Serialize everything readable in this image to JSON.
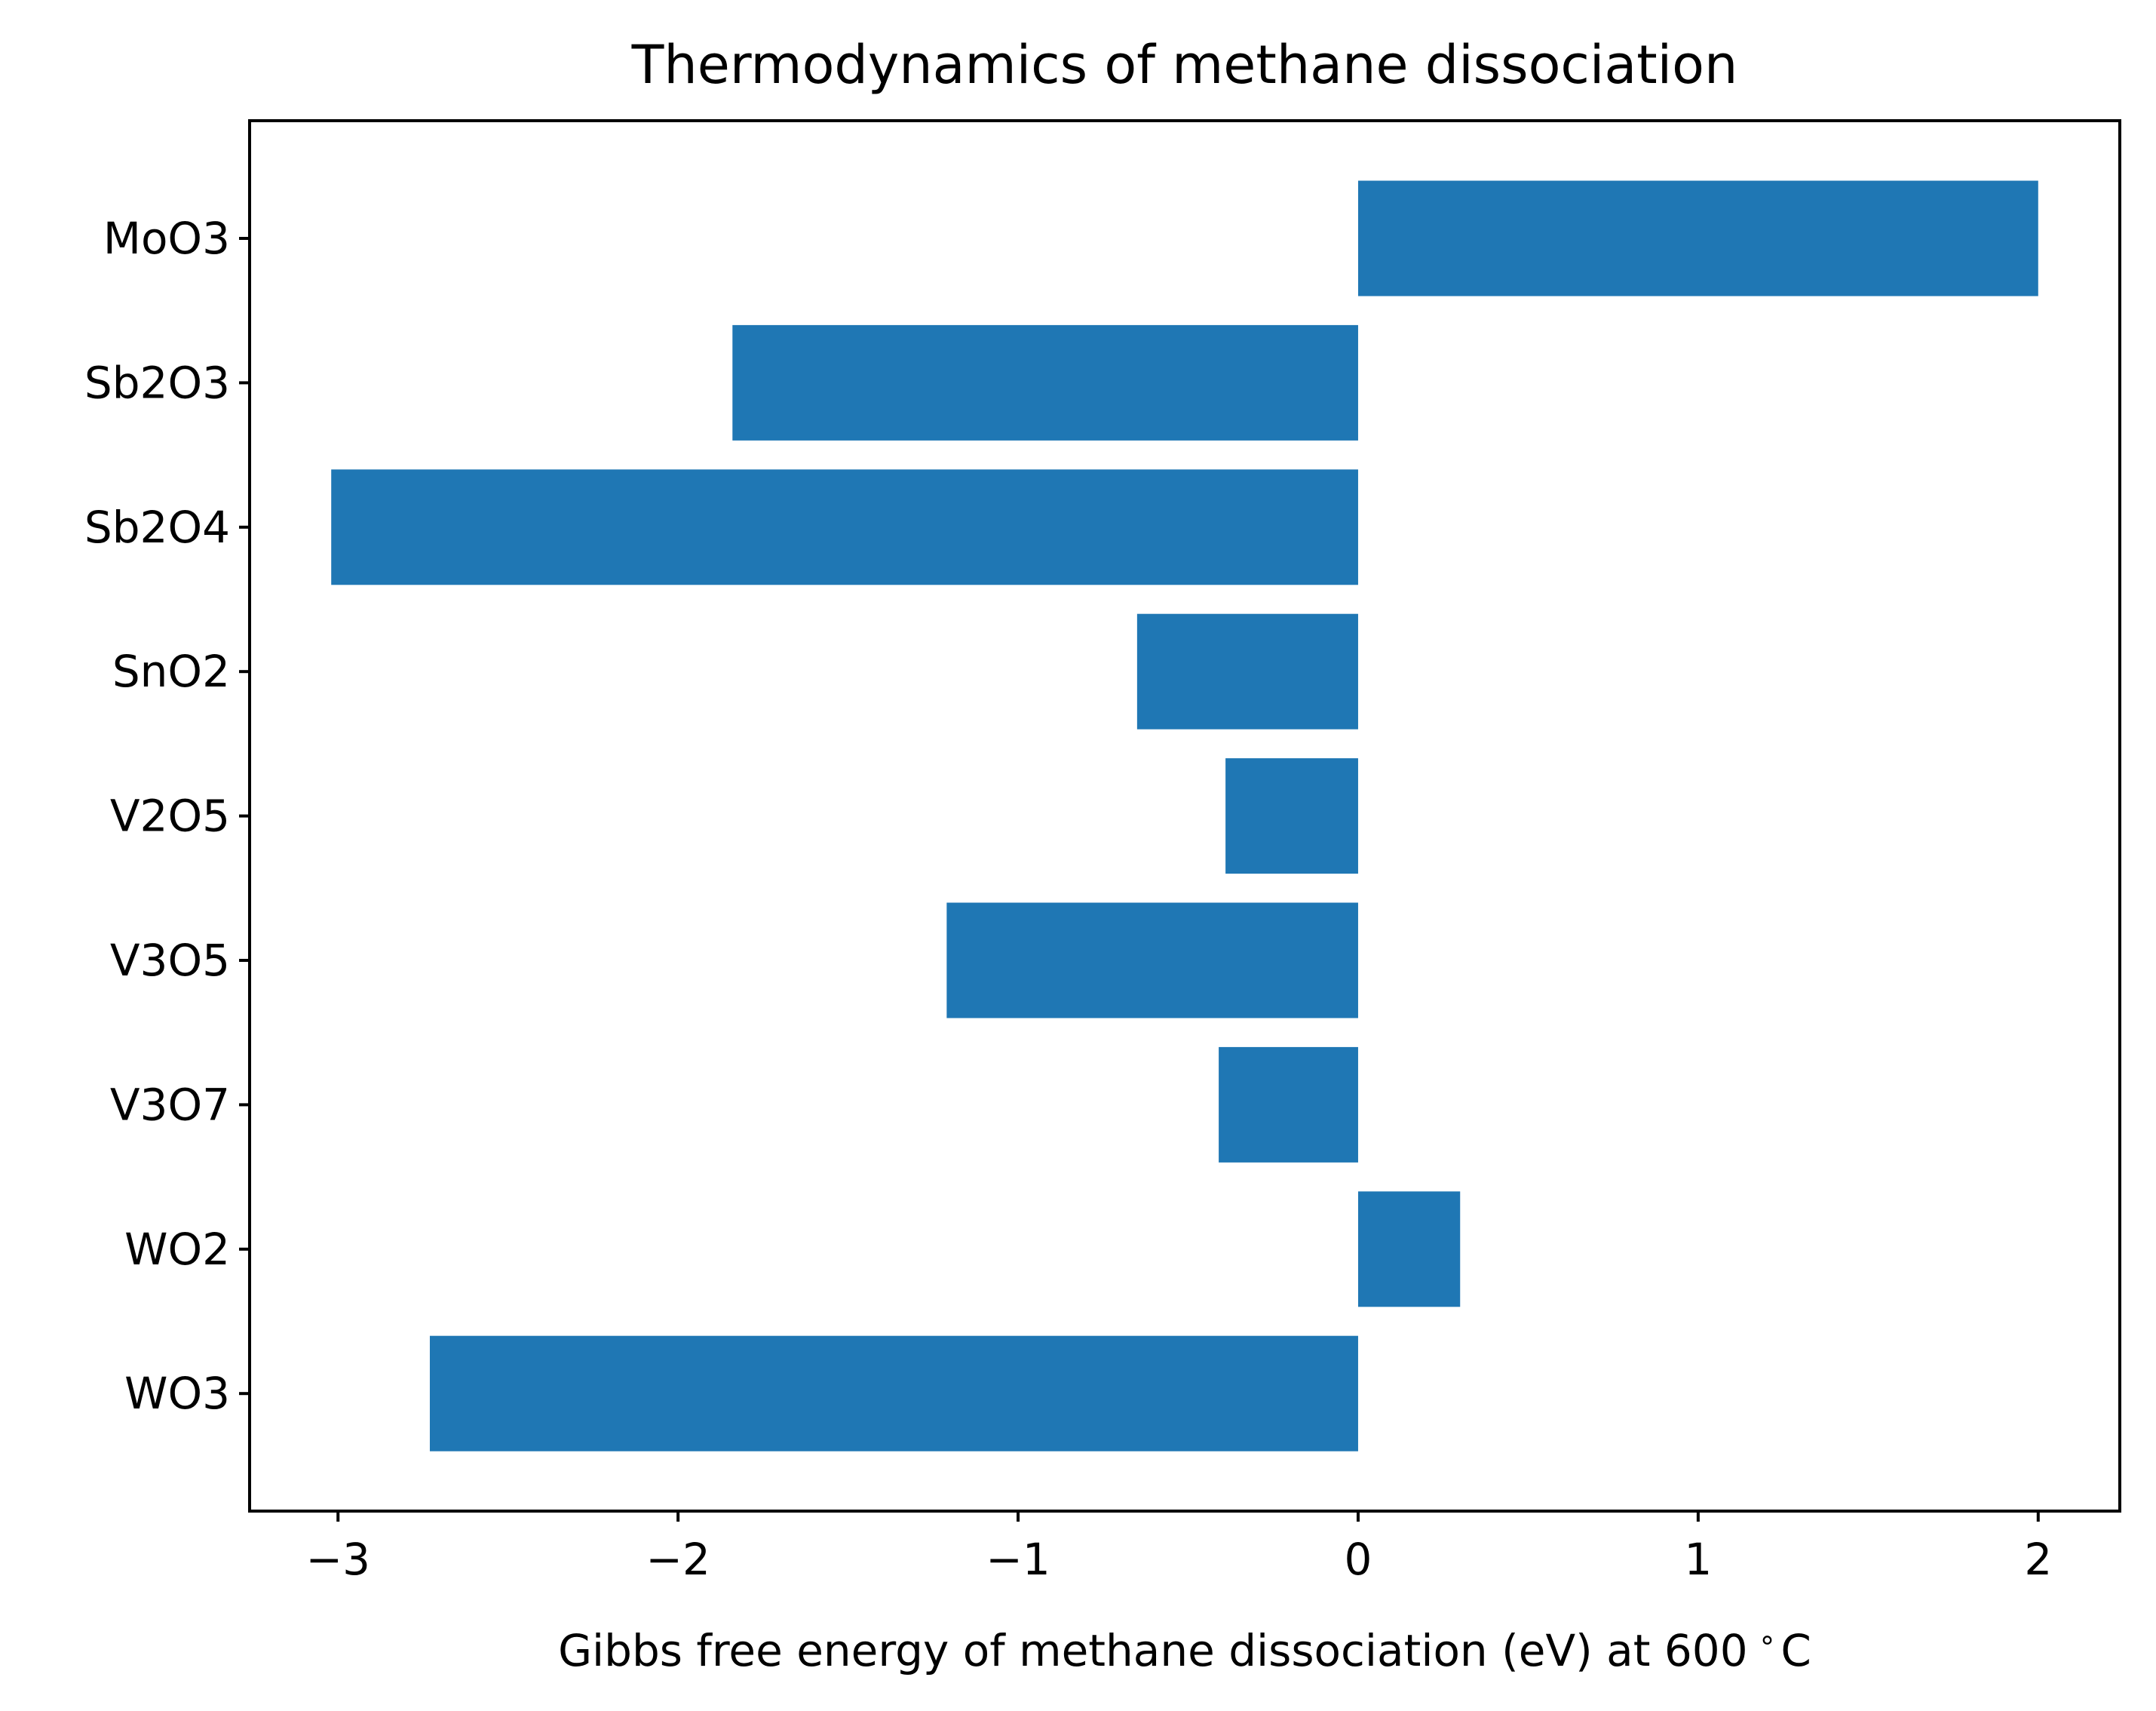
{
  "chart_data": {
    "type": "bar",
    "orientation": "horizontal",
    "title": "Thermodynamics of methane dissociation",
    "xlabel": "Gibbs free energy of methane dissociation (eV) at 600",
    "xlabel_unit": "C",
    "ylabel": "",
    "categories": [
      "MoO3",
      "Sb2O3",
      "Sb2O4",
      "SnO2",
      "V2O5",
      "V3O5",
      "V3O7",
      "WO2",
      "WO3"
    ],
    "values": [
      2.0,
      -1.84,
      -3.02,
      -0.65,
      -0.39,
      -1.21,
      -0.41,
      0.3,
      -2.73
    ],
    "xlim": [
      -3.26,
      2.24
    ],
    "xticks": [
      -3,
      -2,
      -1,
      0,
      1,
      2
    ],
    "xtick_labels": [
      "−3",
      "−2",
      "−1",
      "0",
      "1",
      "2"
    ],
    "bar_color": "#1f77b4",
    "grid": false,
    "legend": "none"
  }
}
